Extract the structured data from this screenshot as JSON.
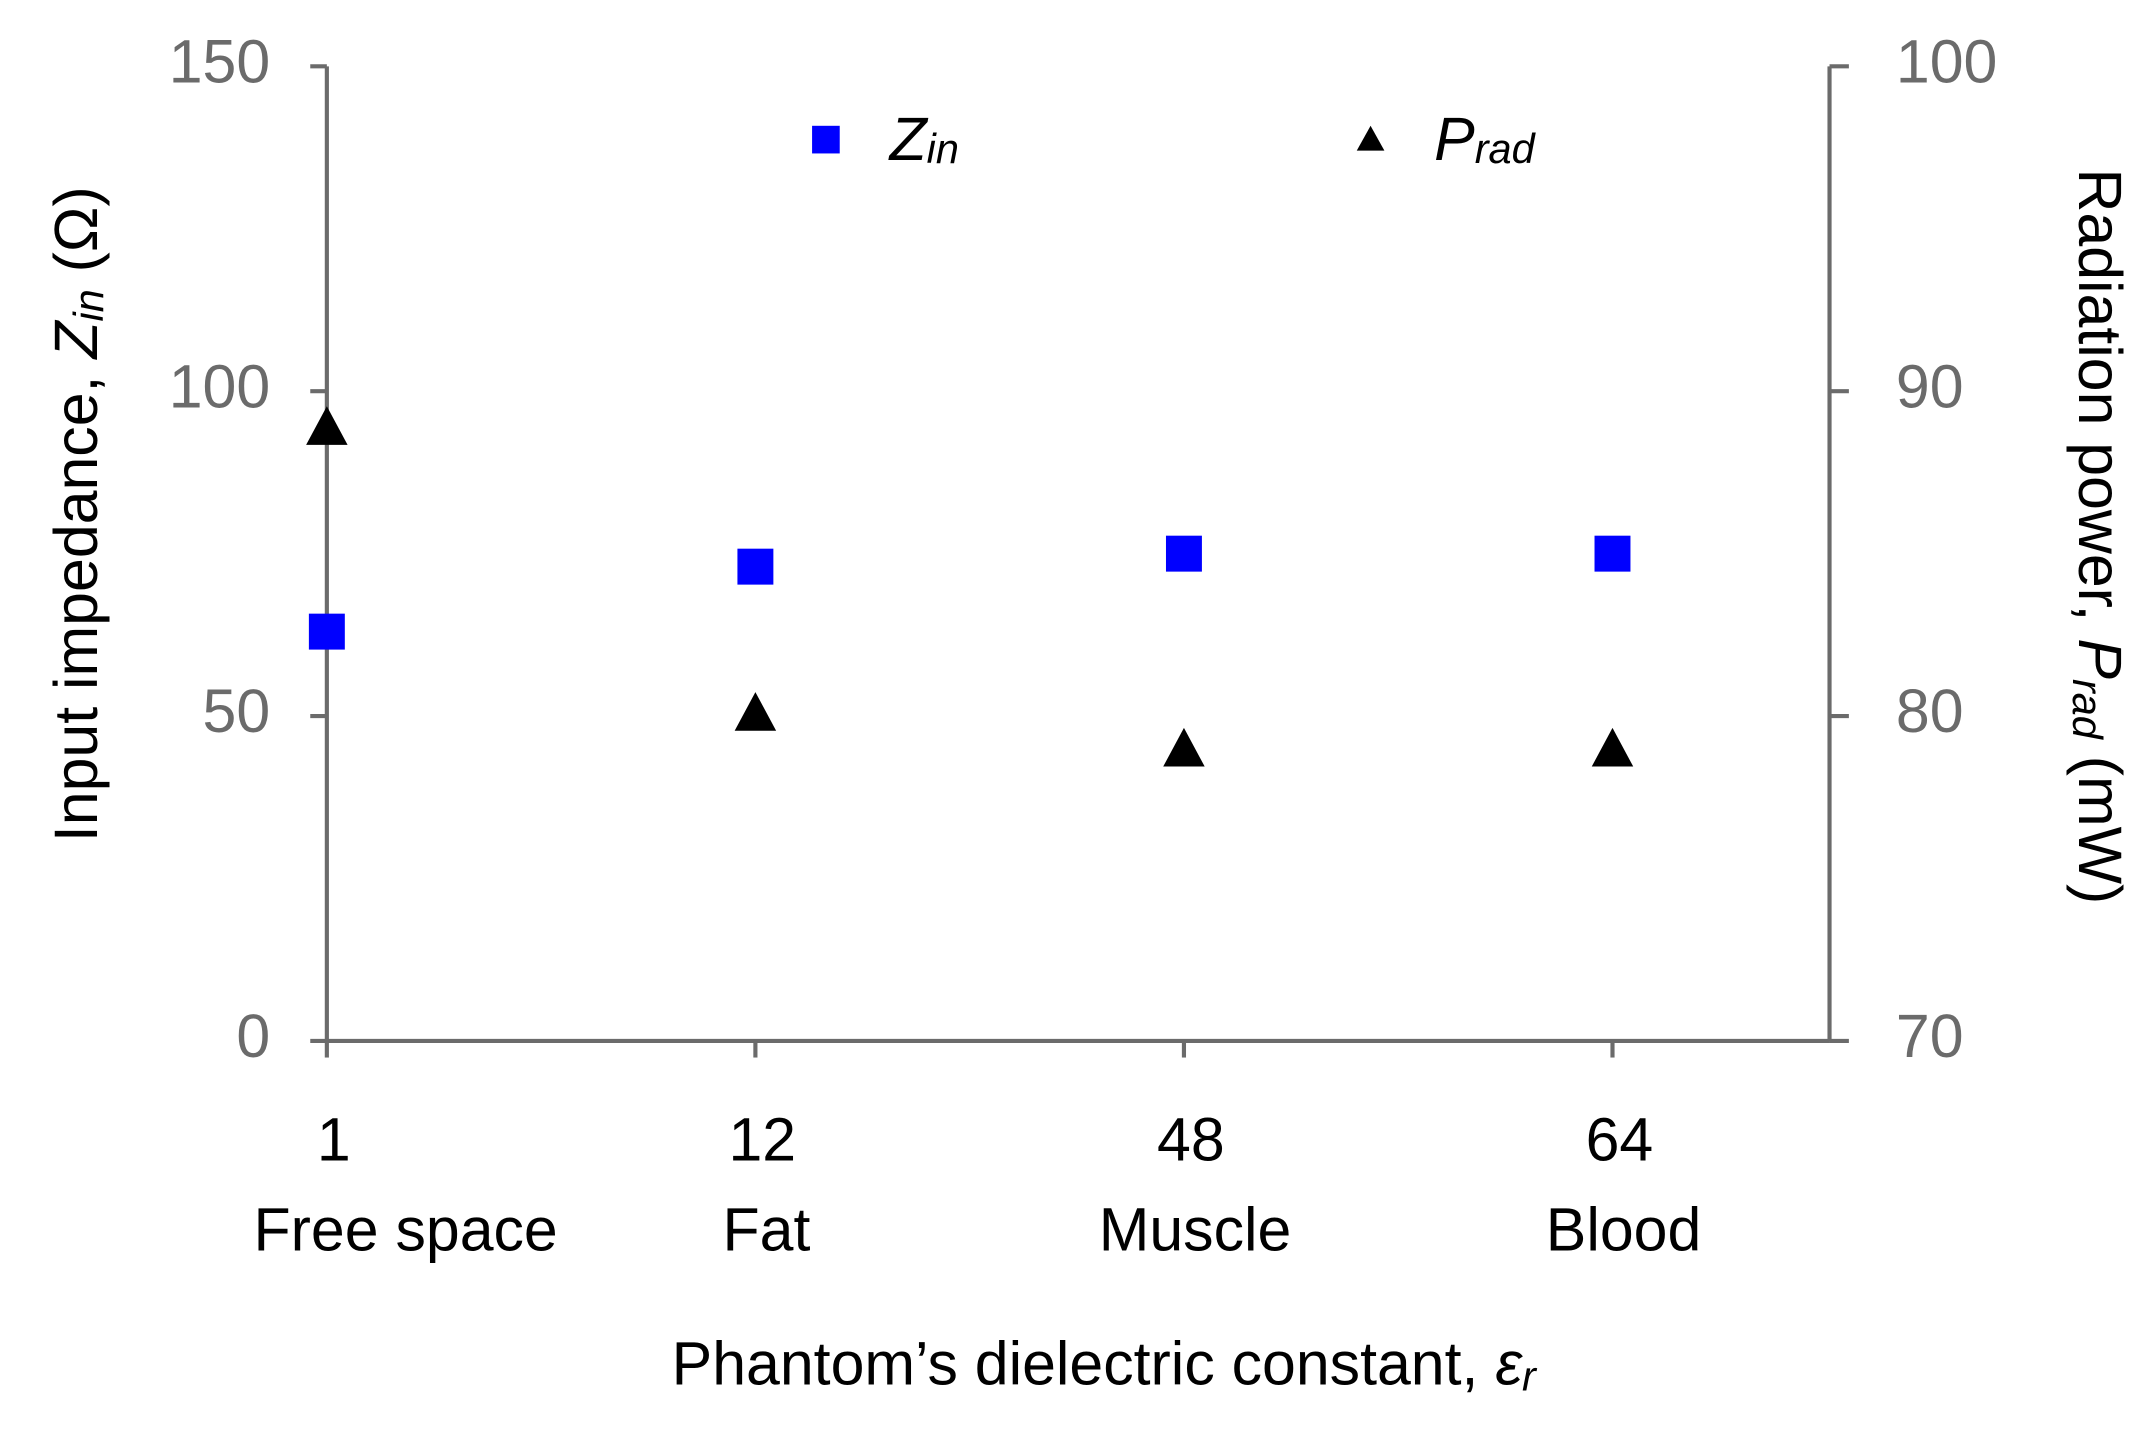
{
  "chart_data": {
    "type": "scatter",
    "categories": [
      "1",
      "12",
      "48",
      "64"
    ],
    "category_names": [
      "Free space",
      "Fat",
      "Muscle",
      "Blood"
    ],
    "xlabel": [
      "Phantom’s dielectric constant, ",
      "ε",
      "r"
    ],
    "ylabel": [
      "Input impedance, ",
      "Z",
      "in",
      " (Ω)"
    ],
    "y2label": [
      "Radiation power, ",
      "P",
      "rad",
      " (mW)"
    ],
    "ylim": [
      0,
      150
    ],
    "yticks": [
      0,
      50,
      100,
      150
    ],
    "y2lim": [
      70,
      100
    ],
    "y2ticks": [
      70,
      80,
      90,
      100
    ],
    "legend": "top",
    "series": [
      {
        "name": "Z",
        "subscript": "in",
        "color": "#0000ff",
        "marker": "square",
        "values": [
          63,
          73,
          75,
          75
        ]
      },
      {
        "name": "P",
        "subscript": "rad",
        "color": "#000000",
        "marker": "triangle",
        "axis": "y2",
        "values": [
          88.9,
          80.1,
          79.0,
          79.0
        ]
      }
    ]
  }
}
